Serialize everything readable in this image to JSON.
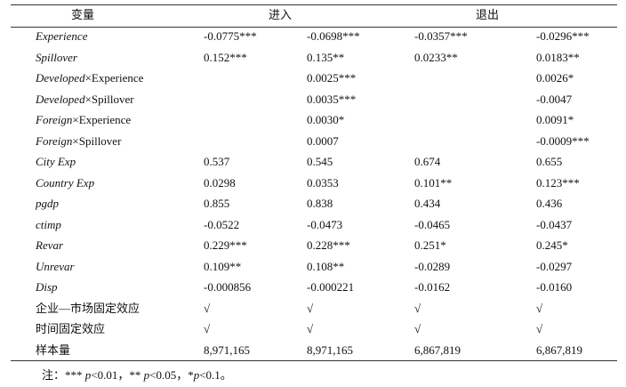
{
  "table": {
    "header": [
      "变量",
      "进入",
      "退出"
    ],
    "rows": [
      {
        "label": "Experience",
        "italic": true,
        "cells": [
          "-0.0775***",
          "-0.0698***",
          "-0.0357***",
          "-0.0296***"
        ]
      },
      {
        "label": "Spillover",
        "italic": true,
        "cells": [
          "0.152***",
          "0.135**",
          "0.0233**",
          "0.0183**"
        ]
      },
      {
        "label": "Developed",
        "suffix": "×Experience",
        "italic": true,
        "cells": [
          null,
          "0.0025***",
          null,
          "0.0026*"
        ]
      },
      {
        "label": "Developed",
        "suffix": "×Spillover",
        "italic": true,
        "cells": [
          null,
          "0.0035***",
          null,
          "-0.0047"
        ]
      },
      {
        "label": "Foreign",
        "suffix": "×Experience",
        "italic": true,
        "cells": [
          null,
          "0.0030*",
          null,
          "0.0091*"
        ]
      },
      {
        "label": "Foreign",
        "suffix": "×Spillover",
        "italic": true,
        "cells": [
          null,
          "0.0007",
          null,
          "-0.0009***"
        ]
      },
      {
        "label": "City Exp",
        "italic": true,
        "cells": [
          "0.537",
          "0.545",
          "0.674",
          "0.655"
        ]
      },
      {
        "label": "Country Exp",
        "italic": true,
        "cells": [
          "0.0298",
          "0.0353",
          "0.101**",
          "0.123***"
        ]
      },
      {
        "label": "pgdp",
        "italic": true,
        "cells": [
          "0.855",
          "0.838",
          "0.434",
          "0.436"
        ]
      },
      {
        "label": "ctimp",
        "italic": true,
        "cells": [
          "-0.0522",
          "-0.0473",
          "-0.0465",
          "-0.0437"
        ]
      },
      {
        "label": "Revar",
        "italic": true,
        "cells": [
          "0.229***",
          "0.228***",
          "0.251*",
          "0.245*"
        ]
      },
      {
        "label": "Unrevar",
        "italic": true,
        "cells": [
          "0.109**",
          "0.108**",
          "-0.0289",
          "-0.0297"
        ]
      },
      {
        "label": "Disp",
        "italic": true,
        "cells": [
          "-0.000856",
          "-0.000221",
          "-0.0162",
          "-0.0160"
        ]
      },
      {
        "label": "企业—市场固定效应",
        "italic": false,
        "cells": [
          "√",
          "√",
          "√",
          "√"
        ]
      },
      {
        "label": "时间固定效应",
        "italic": false,
        "cells": [
          "√",
          "√",
          "√",
          "√"
        ]
      },
      {
        "label": "样本量",
        "italic": false,
        "cells": [
          "8,971,165",
          "8,971,165",
          "6,867,819",
          "6,867,819"
        ]
      }
    ],
    "note": [
      "注：*** ",
      "p",
      "<0.01，** ",
      "p",
      "<0.05，*",
      "p",
      "<0.1。"
    ]
  }
}
